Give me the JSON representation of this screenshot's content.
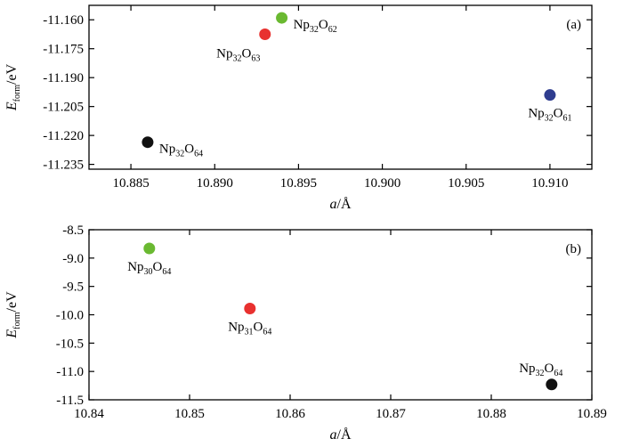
{
  "chart_data": [
    {
      "type": "scatter",
      "panel_label": "(a)",
      "xlabel": {
        "main": "a",
        "unit": "/Å"
      },
      "ylabel": {
        "main": "E",
        "sub": "form",
        "unit": "/eV"
      },
      "xlim": [
        10.8825,
        10.9125
      ],
      "ylim": [
        -11.2375,
        -11.1525
      ],
      "xticks": [
        10.885,
        10.89,
        10.895,
        10.9,
        10.905,
        10.91
      ],
      "xtick_labels": [
        "10.885",
        "10.890",
        "10.895",
        "10.900",
        "10.905",
        "10.910"
      ],
      "yticks": [
        -11.235,
        -11.22,
        -11.205,
        -11.19,
        -11.175,
        -11.16
      ],
      "ytick_labels": [
        "-11.235",
        "-11.220",
        "-11.205",
        "-11.190",
        "-11.175",
        "-11.160"
      ],
      "grid": false,
      "points": [
        {
          "x": 10.886,
          "y": -11.2235,
          "color": "#111111",
          "label": {
            "base1": "Np",
            "sub1": "32",
            "base2": "O",
            "sub2": "64"
          },
          "label_pos": "right"
        },
        {
          "x": 10.893,
          "y": -11.1675,
          "color": "#e8312f",
          "label": {
            "base1": "Np",
            "sub1": "32",
            "base2": "O",
            "sub2": "63"
          },
          "label_pos": "below-left"
        },
        {
          "x": 10.894,
          "y": -11.159,
          "color": "#6ab931",
          "label": {
            "base1": "Np",
            "sub1": "32",
            "base2": "O",
            "sub2": "62"
          },
          "label_pos": "right"
        },
        {
          "x": 10.91,
          "y": -11.199,
          "color": "#2f3d8f",
          "label": {
            "base1": "Np",
            "sub1": "32",
            "base2": "O",
            "sub2": "61"
          },
          "label_pos": "below"
        }
      ]
    },
    {
      "type": "scatter",
      "panel_label": "(b)",
      "xlabel": {
        "main": "a",
        "unit": "/Å"
      },
      "ylabel": {
        "main": "E",
        "sub": "form",
        "unit": "/eV"
      },
      "xlim": [
        10.84,
        10.89
      ],
      "ylim": [
        -11.5,
        -8.5
      ],
      "xticks": [
        10.84,
        10.85,
        10.86,
        10.87,
        10.88,
        10.89
      ],
      "xtick_labels": [
        "10.84",
        "10.85",
        "10.86",
        "10.87",
        "10.88",
        "10.89"
      ],
      "yticks": [
        -11.5,
        -11.0,
        -10.5,
        -10.0,
        -9.5,
        -9.0,
        -8.5
      ],
      "ytick_labels": [
        "-11.5",
        "-11.0",
        "-10.5",
        "-10.0",
        "-9.5",
        "-9.0",
        "-8.5"
      ],
      "grid": false,
      "points": [
        {
          "x": 10.846,
          "y": -8.83,
          "color": "#6ab931",
          "label": {
            "base1": "Np",
            "sub1": "30",
            "base2": "O",
            "sub2": "64"
          },
          "label_pos": "below"
        },
        {
          "x": 10.856,
          "y": -9.89,
          "color": "#e8312f",
          "label": {
            "base1": "Np",
            "sub1": "31",
            "base2": "O",
            "sub2": "64"
          },
          "label_pos": "below"
        },
        {
          "x": 10.886,
          "y": -11.23,
          "color": "#111111",
          "label": {
            "base1": "Np",
            "sub1": "32",
            "base2": "O",
            "sub2": "64"
          },
          "label_pos": "above"
        }
      ]
    }
  ]
}
